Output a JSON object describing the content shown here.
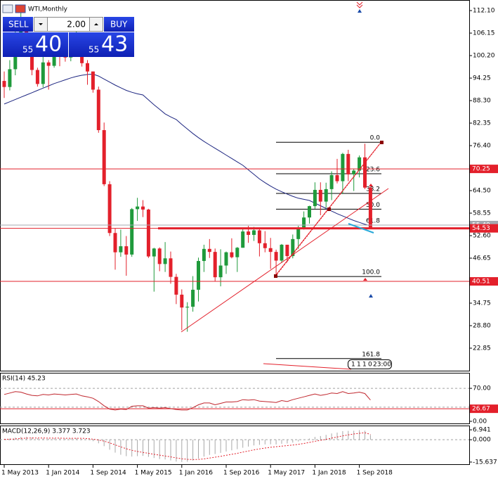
{
  "title": "WTI,Monthly",
  "trade_panel": {
    "sell": "SELL",
    "volume": "2.00",
    "buy": "BUY",
    "bid_prefix": "55",
    "bid_main": "40",
    "ask_prefix": "55",
    "ask_main": "43"
  },
  "timer": [
    "1",
    "1",
    "1",
    "0",
    "23:00"
  ],
  "chart_data": [
    {
      "type": "candlestick",
      "categories": [
        "1 May 2013",
        null,
        null,
        null,
        null,
        null,
        null,
        null,
        "1 Jan 2014",
        null,
        null,
        null,
        null,
        null,
        null,
        null,
        "1 Sep 2014",
        null,
        null,
        null,
        null,
        null,
        null,
        null,
        "1 May 2015",
        null,
        null,
        null,
        null,
        null,
        null,
        null,
        "1 Jan 2016",
        null,
        null,
        null,
        null,
        null,
        null,
        null,
        "1 Sep 2016",
        null,
        null,
        null,
        null,
        null,
        null,
        null,
        "1 May 2017",
        null,
        null,
        null,
        null,
        null,
        null,
        null,
        "1 Jan 2018",
        null,
        null,
        null,
        null,
        null,
        null,
        null,
        "1 Sep 2018",
        null,
        null
      ],
      "ohlc": [
        [
          93.5,
          96,
          89,
          91.9
        ],
        [
          91.9,
          99,
          91,
          96.6
        ],
        [
          96.6,
          108,
          95,
          105
        ],
        [
          105,
          112,
          103,
          107.6
        ],
        [
          107.6,
          110,
          101,
          102.3
        ],
        [
          102.3,
          104,
          95,
          96.4
        ],
        [
          96.4,
          97,
          92,
          92.7
        ],
        [
          92.7,
          100,
          91.8,
          98.4
        ],
        [
          98.4,
          99,
          91.2,
          97.5
        ],
        [
          97.5,
          103,
          97,
          102.6
        ],
        [
          102.6,
          105,
          97.4,
          101.6
        ],
        [
          101.6,
          105,
          98.6,
          99.7
        ],
        [
          99.7,
          104.5,
          98.7,
          102.7
        ],
        [
          102.7,
          107.7,
          101.6,
          105.4
        ],
        [
          105.4,
          105.8,
          97.3,
          98.2
        ],
        [
          98.2,
          99,
          92.5,
          96
        ],
        [
          96,
          96,
          90.4,
          91.2
        ],
        [
          91.2,
          92,
          79.8,
          80.5
        ],
        [
          80.5,
          82.5,
          65.7,
          66.2
        ],
        [
          66.2,
          67,
          52.5,
          53.3
        ],
        [
          53.3,
          54.5,
          43.6,
          48.2
        ],
        [
          48.2,
          54.2,
          47,
          49.8
        ],
        [
          49.8,
          52.5,
          42,
          47.6
        ],
        [
          47.6,
          59.9,
          47,
          59.6
        ],
        [
          59.6,
          62.6,
          56.5,
          60.3
        ],
        [
          60.3,
          62,
          57.5,
          59.5
        ],
        [
          59.5,
          59.7,
          46.7,
          47.1
        ],
        [
          47.1,
          49.4,
          37.8,
          49.2
        ],
        [
          49.2,
          49.5,
          43.2,
          45.1
        ],
        [
          45.1,
          50.9,
          43,
          46.6
        ],
        [
          46.6,
          48.4,
          39.9,
          41.7
        ],
        [
          41.7,
          42.5,
          34.5,
          37
        ],
        [
          37,
          38.4,
          27.6,
          33.6
        ],
        [
          33.6,
          35,
          27.2,
          33.8
        ],
        [
          33.8,
          41.9,
          32.5,
          38.3
        ],
        [
          38.3,
          46.8,
          35.2,
          45.9
        ],
        [
          45.9,
          50.2,
          43,
          49.1
        ],
        [
          49.1,
          51.7,
          46.7,
          48.3
        ],
        [
          48.3,
          49.2,
          40.6,
          41.6
        ],
        [
          41.6,
          49,
          39.2,
          44.7
        ],
        [
          44.7,
          48.4,
          42.5,
          48.2
        ],
        [
          48.2,
          51.9,
          46.6,
          46.9
        ],
        [
          46.9,
          49.6,
          43,
          49.4
        ],
        [
          49.4,
          54.5,
          49.4,
          53.7
        ],
        [
          53.7,
          55.2,
          50.7,
          52.8
        ],
        [
          52.8,
          54.9,
          51.2,
          54
        ],
        [
          54,
          54.5,
          47.1,
          50.6
        ],
        [
          50.6,
          53.8,
          48.2,
          49.3
        ],
        [
          49.3,
          52,
          43.8,
          48.3
        ],
        [
          48.3,
          48.9,
          42,
          46
        ],
        [
          46,
          50.4,
          45.4,
          50.2
        ],
        [
          50.2,
          50.2,
          45.6,
          47.2
        ],
        [
          47.2,
          52.9,
          46.6,
          51.7
        ],
        [
          51.7,
          55.2,
          49.1,
          54.4
        ],
        [
          54.4,
          59,
          54.2,
          57.4
        ],
        [
          57.4,
          60.5,
          55.8,
          60.4
        ],
        [
          60.4,
          66.7,
          59.7,
          64.7
        ],
        [
          64.7,
          66.7,
          58,
          61.6
        ],
        [
          61.6,
          66.6,
          59.9,
          64.9
        ],
        [
          64.9,
          69.6,
          62,
          68.6
        ],
        [
          68.6,
          72.9,
          66.4,
          67
        ],
        [
          67,
          74.5,
          63.6,
          74.2
        ],
        [
          74.2,
          75.3,
          67,
          68.8
        ],
        [
          68.8,
          70.3,
          64.4,
          69.8
        ],
        [
          69.8,
          73.8,
          68,
          73.3
        ],
        [
          73.3,
          76.9,
          64.9,
          65.3
        ],
        [
          65.3,
          65.5,
          54.3,
          54.53
        ]
      ],
      "up_color": "#1f9a3b",
      "down_color": "#e3202b",
      "ma": {
        "color": "#1c2580",
        "values": [
          87.4,
          88,
          88.6,
          89.2,
          89.8,
          90.4,
          91,
          91.6,
          92.2,
          92.8,
          93.3,
          93.8,
          94.3,
          94.7,
          95,
          95.2,
          95.3,
          94.8,
          94,
          93.2,
          92.4,
          91.7,
          91,
          90.5,
          90.1,
          89.8,
          88.5,
          87.2,
          86,
          84.8,
          84,
          83.3,
          82,
          80.8,
          79.6,
          78.5,
          77.5,
          76.6,
          75.7,
          74.8,
          73.9,
          73,
          72.1,
          71.2,
          70,
          68.8,
          67.6,
          66.6,
          65.7,
          64.9,
          64.2,
          63.6,
          63,
          62.5,
          62.2,
          61.9,
          61.2,
          60.5,
          59.8,
          59.1,
          58.4,
          57.8,
          57.2,
          56.6,
          56.1,
          55.6,
          55.2
        ]
      },
      "ylim": [
        16.9,
        114.9
      ],
      "yticks": [
        {
          "value": 112.1,
          "label": "112.10"
        },
        106.15,
        {
          "value": 100.2,
          "label": "100.20"
        },
        94.25,
        {
          "value": 88.3,
          "label": "88.30"
        },
        82.35,
        {
          "value": 76.4,
          "label": "76.40"
        },
        {
          "value": 64.5,
          "label": "64.50"
        },
        58.55,
        {
          "value": 52.6,
          "label": "52.60"
        },
        46.65,
        34.75,
        {
          "value": 28.8,
          "label": "28.80"
        },
        22.85
      ],
      "price_lines": [
        {
          "value": 55.4,
          "label": "55.40",
          "color": "#a4a9b0"
        },
        {
          "value": 54.53,
          "label": "54.53",
          "color": "#e3202b"
        },
        {
          "value": 70.25,
          "label": "70.25",
          "color": "#e3202b"
        },
        {
          "value": 40.51,
          "label": "40.51",
          "color": "#e3202b"
        }
      ],
      "fib": {
        "levels": [
          "0.0",
          "23.6",
          "38.2",
          "50.0",
          "61.8",
          "100.0",
          "161.8"
        ],
        "prices": [
          77.3,
          68.96,
          63.75,
          59.6,
          55.4,
          41.8,
          20.1
        ]
      }
    },
    {
      "type": "line",
      "title": "RSI(14) 45.23",
      "color": "#c0262d",
      "values": [
        57,
        60,
        63,
        62,
        58,
        55,
        54,
        57,
        56,
        58,
        57,
        56,
        57,
        58,
        54,
        52,
        49,
        42,
        33,
        26,
        24,
        26,
        25,
        32,
        33,
        33,
        28,
        29,
        28,
        29,
        27,
        25,
        24,
        24,
        29,
        35,
        39,
        39,
        35,
        38,
        41,
        41,
        42,
        46,
        45,
        46,
        43,
        42,
        41,
        40,
        44,
        42,
        46,
        49,
        52,
        55,
        58,
        55,
        57,
        60,
        59,
        63,
        59,
        60,
        62,
        59,
        45.23
      ],
      "ylim": [
        0,
        100
      ],
      "yticks": [
        {
          "value": 70,
          "label": "70.00"
        },
        {
          "value": 0,
          "label": "0.00"
        }
      ],
      "levels": [
        70,
        30
      ],
      "level_line": {
        "value": 26.67,
        "label": "26.67",
        "color": "#e3202b"
      }
    },
    {
      "type": "macd",
      "title": "MACD(12,26,9) 3.377 3.723",
      "bar_color": "#a8a8a8",
      "signal_color": "#e3202b",
      "histogram": [
        0.5,
        0.8,
        1.5,
        2,
        2,
        1.6,
        1,
        1,
        0.8,
        1,
        1,
        0.8,
        0.9,
        1.2,
        0.6,
        0,
        -1,
        -2.5,
        -4.5,
        -7,
        -9,
        -10.5,
        -11.5,
        -11.8,
        -11.5,
        -11.3,
        -12,
        -12.8,
        -13.5,
        -13.8,
        -14.5,
        -15.3,
        -15.6,
        -15.4,
        -14.6,
        -13.2,
        -11.8,
        -10.6,
        -10,
        -9.2,
        -8.2,
        -7.4,
        -6.6,
        -5.6,
        -4.8,
        -4,
        -3.6,
        -3.3,
        -3.2,
        -3.3,
        -2.8,
        -2.6,
        -2,
        -1.2,
        -0.2,
        0.8,
        2,
        2.6,
        3.4,
        4.4,
        5,
        6,
        6.2,
        6.3,
        6.7,
        6.3,
        3.377
      ],
      "signal": [
        0.3,
        0.4,
        0.6,
        0.9,
        1.1,
        1.2,
        1.2,
        1.2,
        1.1,
        1.1,
        1.1,
        1,
        1,
        1,
        1,
        0.8,
        0.4,
        -0.2,
        -1,
        -2.2,
        -3.6,
        -5,
        -6.3,
        -7.4,
        -8.2,
        -8.9,
        -9.5,
        -10.2,
        -10.8,
        -11.4,
        -12,
        -12.7,
        -13.3,
        -13.7,
        -13.9,
        -13.8,
        -13.4,
        -12.8,
        -12.2,
        -11.6,
        -10.9,
        -10.2,
        -9.5,
        -8.7,
        -7.9,
        -7.1,
        -6.4,
        -5.8,
        -5.3,
        -4.9,
        -4.5,
        -4.1,
        -3.7,
        -3.2,
        -2.6,
        -1.9,
        -1.1,
        -0.4,
        0.3,
        1.1,
        1.9,
        2.7,
        3.4,
        4,
        4.5,
        4.9,
        3.723
      ],
      "ylim": [
        -17.64,
        9.44
      ],
      "yticks": [
        6.941,
        {
          "value": 0,
          "label": "0.000"
        },
        -15.637
      ]
    }
  ]
}
